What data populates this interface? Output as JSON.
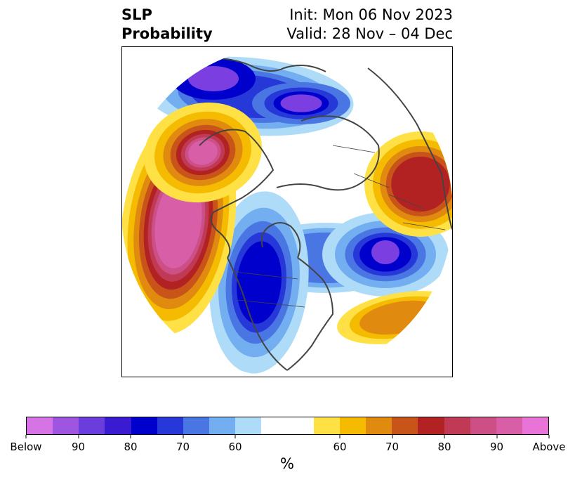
{
  "title": {
    "left_line1": "SLP",
    "left_line2": "Probability",
    "right_line1": "Init: Mon 06 Nov 2023",
    "right_line2": "Valid: 28 Nov – 04 Dec"
  },
  "colorbar": {
    "label": "%",
    "colors": [
      "#d674e6",
      "#9e55e0",
      "#6a3ddc",
      "#3a1bd2",
      "#0000cc",
      "#2638d8",
      "#4a76e4",
      "#72aef0",
      "#aedcf8",
      "#ffffff",
      "#ffffff",
      "#ffe146",
      "#f4bb00",
      "#e08a10",
      "#c8541a",
      "#b22222",
      "#c03a56",
      "#cc4f86",
      "#d85ea8",
      "#e874d8"
    ],
    "tick_labels": [
      "Below",
      "90",
      "80",
      "70",
      "60",
      "60",
      "70",
      "80",
      "90",
      "Above"
    ]
  },
  "map": {
    "projection": "north-polar-stereographic",
    "colors": {
      "below_strong": "#7b3ee0",
      "below_80": "#0000cc",
      "below_70": "#2638d8",
      "below_65": "#4a76e4",
      "below_60": "#72aef0",
      "below_55": "#aedcf8",
      "above_55": "#ffe146",
      "above_60": "#f4bb00",
      "above_65": "#e08a10",
      "above_70": "#c8541a",
      "above_75": "#b22222",
      "above_80": "#c03a56",
      "above_85": "#cc4f86",
      "above_90": "#d85ea8",
      "coastline": "#444444"
    }
  }
}
